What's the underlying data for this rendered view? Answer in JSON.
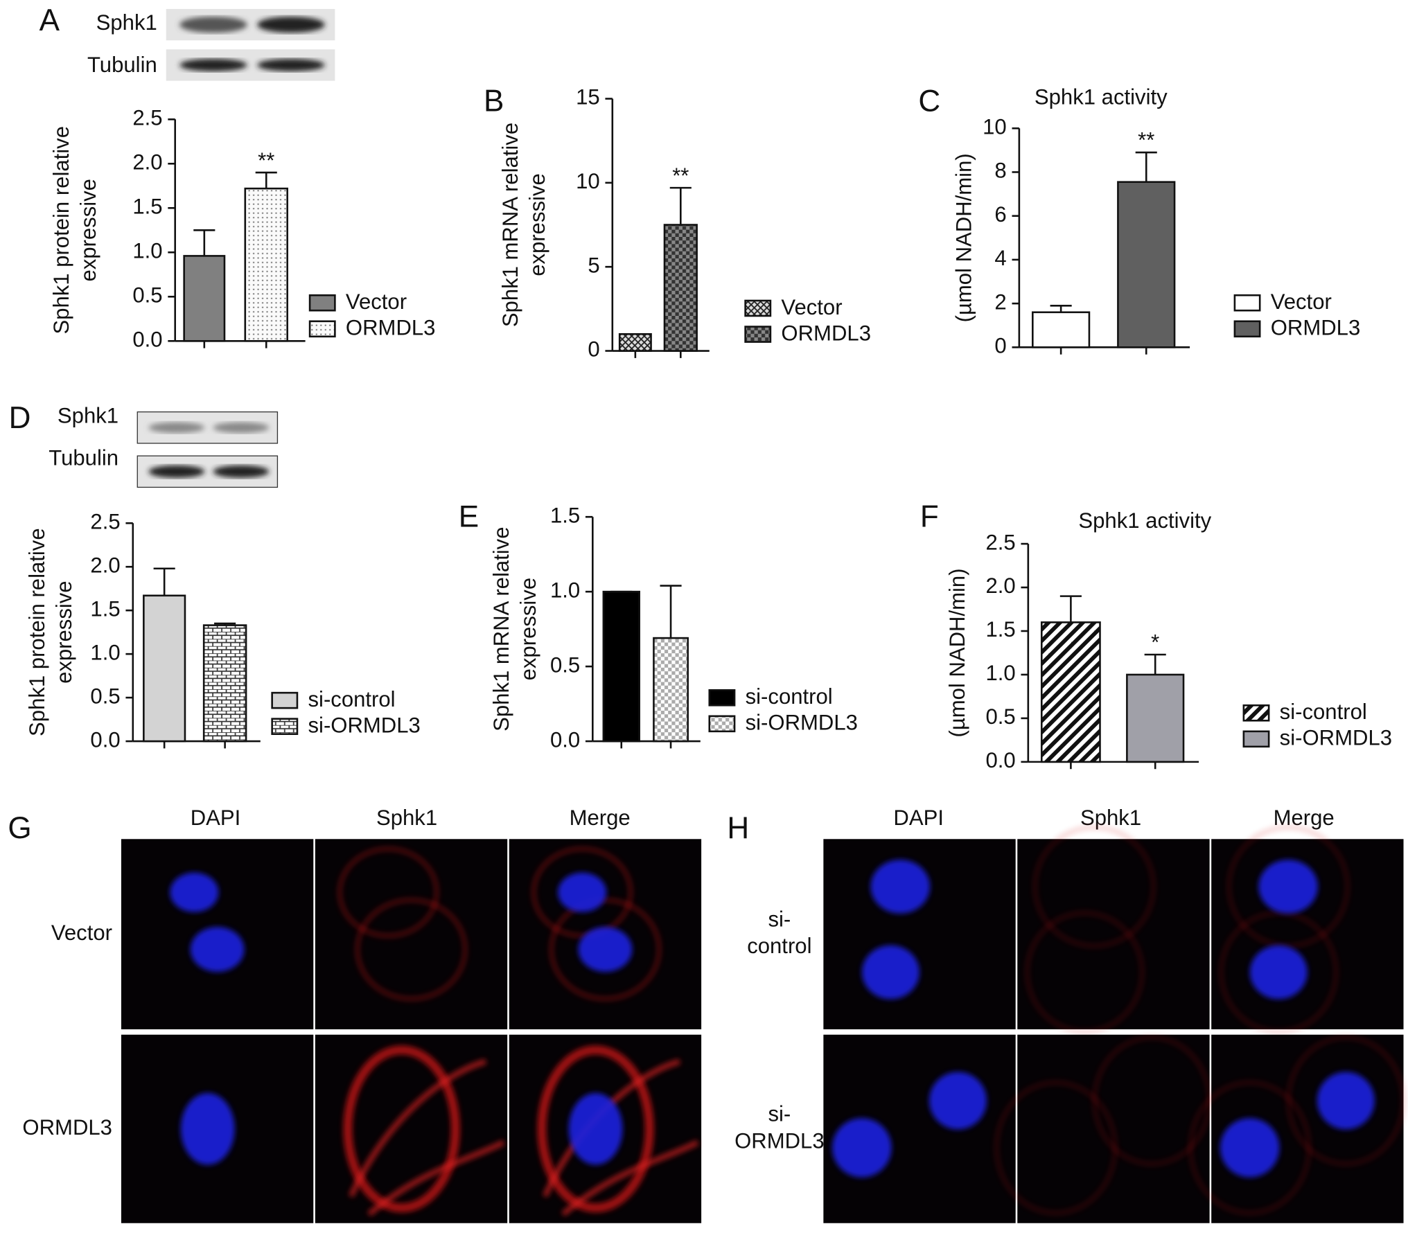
{
  "chart_data": [
    {
      "type": "bar",
      "panel": "A",
      "ylabel": [
        "Sphk1 protein relative",
        "expressive"
      ],
      "ylim": [
        0,
        2.5
      ],
      "yticks": [
        {
          "value": 0,
          "label": "0.0"
        },
        {
          "value": 0.5,
          "label": "0.5"
        },
        {
          "value": 1,
          "label": "1.0"
        },
        {
          "value": 1.5,
          "label": "1.5"
        },
        {
          "value": 2,
          "label": "2.0"
        },
        {
          "value": 2.5,
          "label": "2.5"
        }
      ],
      "series": [
        {
          "name": "Vector",
          "color": "#808080",
          "values": [
            0.96
          ],
          "errors": [
            0.29
          ]
        },
        {
          "name": "ORMDL3",
          "pattern": "dots",
          "values": [
            1.72
          ],
          "errors": [
            0.18
          ],
          "annotation": "**"
        }
      ]
    },
    {
      "type": "bar",
      "panel": "B",
      "ylabel": [
        "Sphk1 mRNA relative",
        "expressive"
      ],
      "ylim": [
        0,
        15
      ],
      "yticks": [
        0,
        5,
        10,
        15
      ],
      "series": [
        {
          "name": "Vector",
          "pattern": "cross",
          "values": [
            1.0
          ],
          "errors": [
            0
          ]
        },
        {
          "name": "ORMDL3",
          "pattern": "checker",
          "values": [
            7.5
          ],
          "errors": [
            2.2
          ],
          "annotation": "**"
        }
      ]
    },
    {
      "type": "bar",
      "panel": "C",
      "title": "Sphk1 activity",
      "ylabel": [
        "(µmol NADH/min)"
      ],
      "ylim": [
        0,
        10
      ],
      "yticks": [
        0,
        2,
        4,
        6,
        8,
        10
      ],
      "series": [
        {
          "name": "Vector",
          "color": "#ffffff",
          "values": [
            1.6
          ],
          "errors": [
            0.3
          ]
        },
        {
          "name": "ORMDL3",
          "color": "#606060",
          "values": [
            7.55
          ],
          "errors": [
            1.35
          ],
          "annotation": "**"
        }
      ]
    },
    {
      "type": "bar",
      "panel": "D",
      "ylabel": [
        "Sphk1 protein relative",
        "expressive"
      ],
      "ylim": [
        0,
        2.5
      ],
      "yticks": [
        {
          "value": 0,
          "label": "0.0"
        },
        {
          "value": 0.5,
          "label": "0.5"
        },
        {
          "value": 1,
          "label": "1.0"
        },
        {
          "value": 1.5,
          "label": "1.5"
        },
        {
          "value": 2,
          "label": "2.0"
        },
        {
          "value": 2.5,
          "label": "2.5"
        }
      ],
      "series": [
        {
          "name": "si-control",
          "color": "#d3d3d3",
          "values": [
            1.67
          ],
          "errors": [
            0.31
          ]
        },
        {
          "name": "si-ORMDL3",
          "pattern": "brick",
          "values": [
            1.33
          ],
          "errors": [
            0.02
          ]
        }
      ]
    },
    {
      "type": "bar",
      "panel": "E",
      "ylabel": [
        "Sphk1 mRNA relative",
        "expressive"
      ],
      "ylim": [
        0,
        1.5
      ],
      "yticks": [
        {
          "value": 0,
          "label": "0.0"
        },
        {
          "value": 0.5,
          "label": "0.5"
        },
        {
          "value": 1,
          "label": "1.0"
        },
        {
          "value": 1.5,
          "label": "1.5"
        }
      ],
      "series": [
        {
          "name": "si-control",
          "color": "#000000",
          "values": [
            1.0
          ],
          "errors": [
            0
          ]
        },
        {
          "name": "si-ORMDL3",
          "pattern": "checkerLight",
          "values": [
            0.69
          ],
          "errors": [
            0.35
          ]
        }
      ]
    },
    {
      "type": "bar",
      "panel": "F",
      "title": "Sphk1 activity",
      "ylabel": [
        "(µmol NADH/min)"
      ],
      "ylim": [
        0,
        2.5
      ],
      "yticks": [
        {
          "value": 0,
          "label": "0.0"
        },
        {
          "value": 0.5,
          "label": "0.5"
        },
        {
          "value": 1,
          "label": "1.0"
        },
        {
          "value": 1.5,
          "label": "1.5"
        },
        {
          "value": 2,
          "label": "2.0"
        },
        {
          "value": 2.5,
          "label": "2.5"
        }
      ],
      "series": [
        {
          "name": "si-control",
          "pattern": "stripes",
          "values": [
            1.6
          ],
          "errors": [
            0.3
          ]
        },
        {
          "name": "si-ORMDL3",
          "color": "#a0a0a8",
          "values": [
            1.0
          ],
          "errors": [
            0.23
          ],
          "annotation": "*"
        }
      ]
    }
  ],
  "blots": [
    {
      "rows": [
        "Sphk1",
        "Tubulin"
      ]
    },
    {
      "rows": [
        "Sphk1",
        "Tubulin"
      ]
    }
  ],
  "micrographs": [
    {
      "panel": "G",
      "columns": [
        "DAPI",
        "Sphk1",
        "Merge"
      ],
      "rows": [
        [
          "Vector"
        ],
        [
          "ORMDL3"
        ]
      ]
    },
    {
      "panel": "H",
      "columns": [
        "DAPI",
        "Sphk1",
        "Merge"
      ],
      "rows": [
        [
          "si-",
          "control"
        ],
        [
          "si-",
          "ORMDL3"
        ]
      ]
    }
  ]
}
